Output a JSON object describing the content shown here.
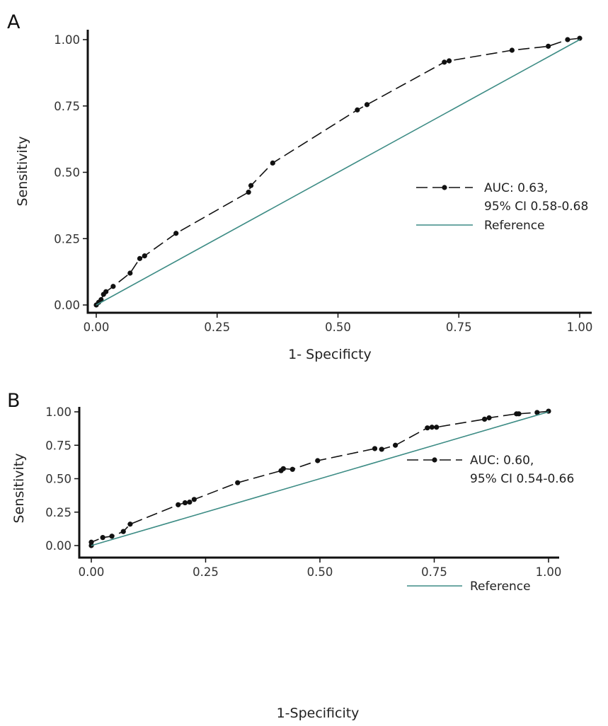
{
  "chart_data": [
    {
      "type": "line",
      "panel_label": "A",
      "xlabel": "1- Specificty",
      "ylabel": "Sensitivity",
      "xlim": [
        0,
        1
      ],
      "ylim": [
        0,
        1
      ],
      "x_ticks": [
        "0.00",
        "0.25",
        "0.50",
        "0.75",
        "1.00"
      ],
      "y_ticks": [
        "0.00",
        "0.25",
        "0.50",
        "0.75",
        "1.00"
      ],
      "grid": false,
      "legend_position": "right",
      "series": [
        {
          "name_lines": [
            "AUC: 0.63,",
            "95% CI 0.58-0.68"
          ],
          "style": "dashed-with-points",
          "color": "#111111",
          "x": [
            0.0,
            0.005,
            0.01,
            0.015,
            0.02,
            0.035,
            0.07,
            0.09,
            0.1,
            0.165,
            0.315,
            0.32,
            0.365,
            0.54,
            0.56,
            0.72,
            0.73,
            0.86,
            0.935,
            0.975,
            1.0
          ],
          "y": [
            0.0,
            0.01,
            0.02,
            0.04,
            0.05,
            0.07,
            0.12,
            0.175,
            0.185,
            0.27,
            0.425,
            0.45,
            0.535,
            0.735,
            0.755,
            0.915,
            0.92,
            0.96,
            0.975,
            1.0,
            1.005
          ]
        },
        {
          "name": "Reference",
          "style": "solid",
          "color": "#3d8c85",
          "x": [
            0,
            1
          ],
          "y": [
            0,
            1
          ]
        }
      ]
    },
    {
      "type": "line",
      "panel_label": "B",
      "xlabel": "1-Specificity",
      "ylabel": "Sensitivity",
      "xlim": [
        0,
        1
      ],
      "ylim": [
        0,
        1
      ],
      "x_ticks": [
        "0.00",
        "0.25",
        "0.50",
        "0.75",
        "1.00"
      ],
      "y_ticks": [
        "0.00",
        "0.25",
        "0.50",
        "0.75",
        "1.00"
      ],
      "grid": false,
      "legend_position": "right",
      "series": [
        {
          "name_lines": [
            "AUC: 0.60,",
            "95% CI 0.54-0.66"
          ],
          "style": "dashed-with-points",
          "color": "#111111",
          "x": [
            0.0,
            0.0,
            0.025,
            0.045,
            0.07,
            0.085,
            0.19,
            0.205,
            0.215,
            0.225,
            0.32,
            0.415,
            0.42,
            0.44,
            0.495,
            0.62,
            0.635,
            0.665,
            0.735,
            0.745,
            0.755,
            0.86,
            0.87,
            0.93,
            0.935,
            0.975,
            1.0
          ],
          "y": [
            0.0,
            0.025,
            0.06,
            0.07,
            0.105,
            0.16,
            0.305,
            0.32,
            0.325,
            0.345,
            0.47,
            0.56,
            0.575,
            0.57,
            0.635,
            0.725,
            0.72,
            0.75,
            0.88,
            0.885,
            0.885,
            0.945,
            0.955,
            0.985,
            0.985,
            0.995,
            1.005
          ]
        },
        {
          "name": "Reference",
          "style": "solid",
          "color": "#3d8c85",
          "x": [
            0,
            1
          ],
          "y": [
            0,
            1
          ]
        }
      ]
    }
  ]
}
